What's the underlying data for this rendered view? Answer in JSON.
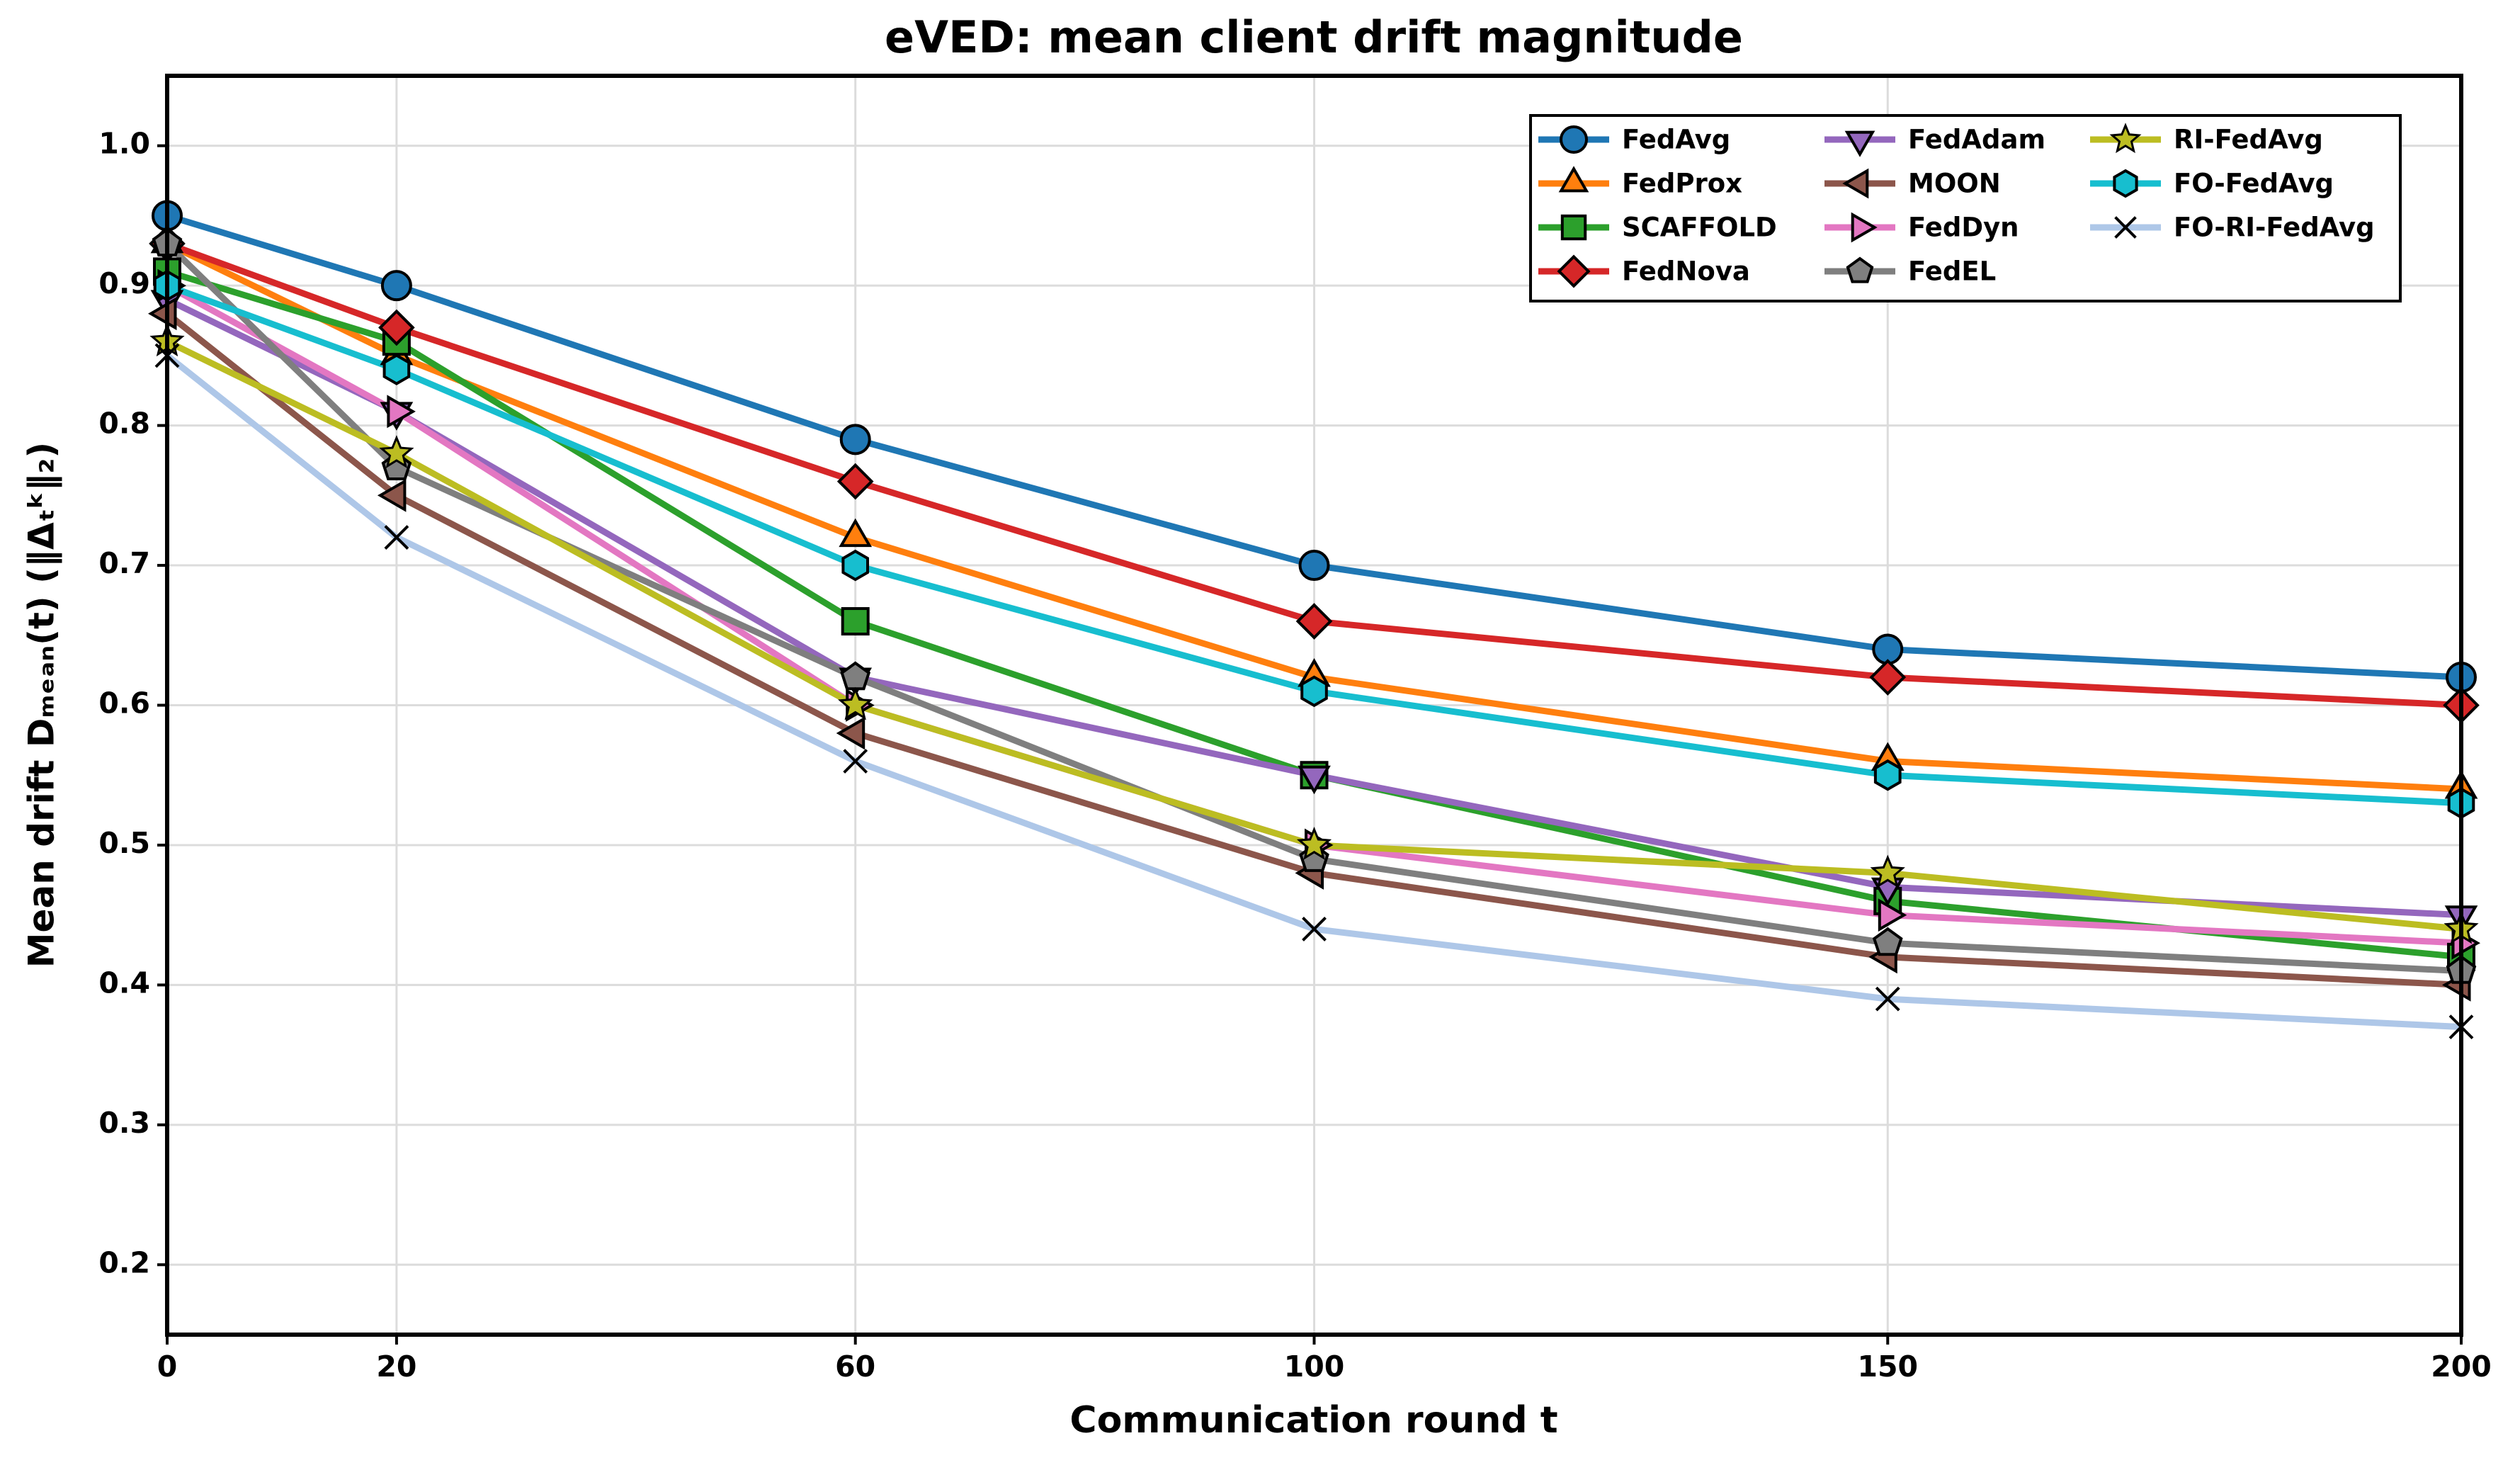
{
  "chart_data": {
    "type": "line",
    "title": "eVED: mean client drift magnitude",
    "x_label": "Communication round t",
    "y_label": "Mean drift Dₘₑₐₙ(t) (‖Δₜᵏ‖₂)",
    "x": [
      0,
      20,
      60,
      100,
      150,
      200
    ],
    "xlim": [
      0,
      200
    ],
    "xticks": [
      0,
      20,
      60,
      100,
      150,
      200
    ],
    "ylim": [
      0.15,
      1.05
    ],
    "yticks": [
      0.2,
      0.3,
      0.4,
      0.5,
      0.6,
      0.7,
      0.8,
      0.9,
      {
        "value": 1.0,
        "label": "1.0"
      }
    ],
    "grid": true,
    "legend": "upper right",
    "series": [
      {
        "name": "FedAvg",
        "color": "#1f77b4",
        "marker": "circle",
        "values": [
          0.95,
          0.9,
          0.79,
          0.7,
          0.64,
          0.62
        ]
      },
      {
        "name": "FedProx",
        "color": "#ff7f0e",
        "marker": "triangle-up",
        "values": [
          0.93,
          0.85,
          0.72,
          0.62,
          0.56,
          0.54
        ]
      },
      {
        "name": "SCAFFOLD",
        "color": "#2ca02c",
        "marker": "square",
        "values": [
          0.91,
          0.86,
          0.66,
          0.55,
          0.46,
          0.42
        ]
      },
      {
        "name": "FedNova",
        "color": "#d62728",
        "marker": "diamond",
        "values": [
          0.93,
          0.87,
          0.76,
          0.66,
          0.62,
          0.6
        ]
      },
      {
        "name": "FedAdam",
        "color": "#9467bd",
        "marker": "triangle-down",
        "values": [
          0.89,
          0.81,
          0.62,
          0.55,
          0.47,
          0.45
        ]
      },
      {
        "name": "MOON",
        "color": "#8c564b",
        "marker": "triangle-left",
        "values": [
          0.88,
          0.75,
          0.58,
          0.48,
          0.42,
          0.4
        ]
      },
      {
        "name": "FedDyn",
        "color": "#e377c2",
        "marker": "triangle-right",
        "values": [
          0.9,
          0.81,
          0.6,
          0.5,
          0.45,
          0.43
        ]
      },
      {
        "name": "FedEL",
        "color": "#7f7f7f",
        "marker": "pentagon",
        "values": [
          0.93,
          0.77,
          0.62,
          0.49,
          0.43,
          0.41
        ]
      },
      {
        "name": "RI-FedAvg",
        "color": "#bcbd22",
        "marker": "star",
        "values": [
          0.86,
          0.78,
          0.6,
          0.5,
          0.48,
          0.44
        ]
      },
      {
        "name": "FO-FedAvg",
        "color": "#17becf",
        "marker": "hexagon",
        "values": [
          0.9,
          0.84,
          0.7,
          0.61,
          0.55,
          0.53
        ]
      },
      {
        "name": "FO-RI-FedAvg",
        "color": "#aec7e8",
        "marker": "x",
        "values": [
          0.85,
          0.72,
          0.56,
          0.44,
          0.39,
          0.37
        ]
      }
    ]
  }
}
